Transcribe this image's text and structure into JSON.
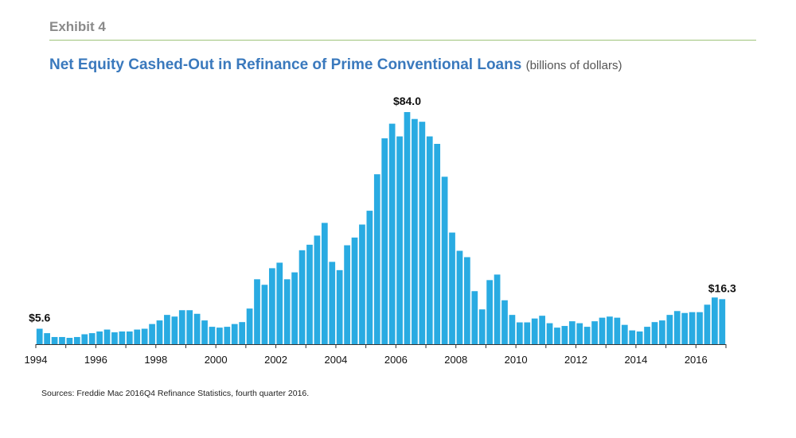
{
  "header": {
    "exhibit": "Exhibit 4",
    "title": "Net Equity Cashed-Out in Refinance of Prime Conventional Loans",
    "subtitle": "(billions of dollars)"
  },
  "source": "Sources: Freddie Mac 2016Q4 Refinance Statistics, fourth quarter 2016.",
  "colors": {
    "bar": "#29abe2",
    "title": "#3a79bd",
    "rule": "#9fc37a",
    "axis": "#333333"
  },
  "chart_data": {
    "type": "bar",
    "title": "Net Equity Cashed-Out in Refinance of Prime Conventional Loans",
    "ylabel": "(billions of dollars)",
    "x_start": "1994Q1",
    "frequency": "quarterly",
    "xticks": [
      "1994",
      "1996",
      "1998",
      "2000",
      "2002",
      "2004",
      "2006",
      "2008",
      "2010",
      "2012",
      "2014",
      "2016"
    ],
    "ylim": [
      0,
      84
    ],
    "grid": false,
    "values": [
      5.6,
      4.0,
      2.6,
      2.6,
      2.3,
      2.6,
      3.6,
      4.0,
      4.6,
      5.3,
      4.3,
      4.6,
      4.6,
      5.3,
      5.6,
      7.3,
      8.6,
      10.6,
      10.0,
      12.3,
      12.3,
      11.0,
      8.6,
      6.3,
      6.0,
      6.3,
      7.3,
      8.0,
      12.9,
      23.5,
      21.5,
      27.5,
      29.5,
      23.5,
      26.0,
      34.0,
      36.0,
      39.3,
      43.9,
      29.8,
      26.8,
      35.8,
      38.6,
      43.3,
      48.3,
      61.5,
      74.5,
      79.8,
      75.2,
      84.0,
      81.5,
      80.5,
      75.2,
      72.5,
      60.6,
      40.4,
      33.8,
      31.5,
      19.2,
      12.6,
      23.2,
      25.2,
      15.9,
      10.6,
      7.9,
      7.9,
      9.3,
      10.3,
      7.6,
      6.0,
      6.6,
      8.3,
      7.6,
      6.3,
      8.3,
      9.6,
      10.0,
      9.6,
      7.0,
      5.0,
      4.6,
      6.3,
      8.0,
      8.6,
      10.6,
      12.0,
      11.3,
      11.6,
      11.6,
      14.3,
      16.9,
      16.3
    ],
    "data_labels": [
      {
        "index": 0,
        "text": "$5.6"
      },
      {
        "index": 49,
        "text": "$84.0"
      },
      {
        "index": 91,
        "text": "$16.3"
      }
    ]
  }
}
